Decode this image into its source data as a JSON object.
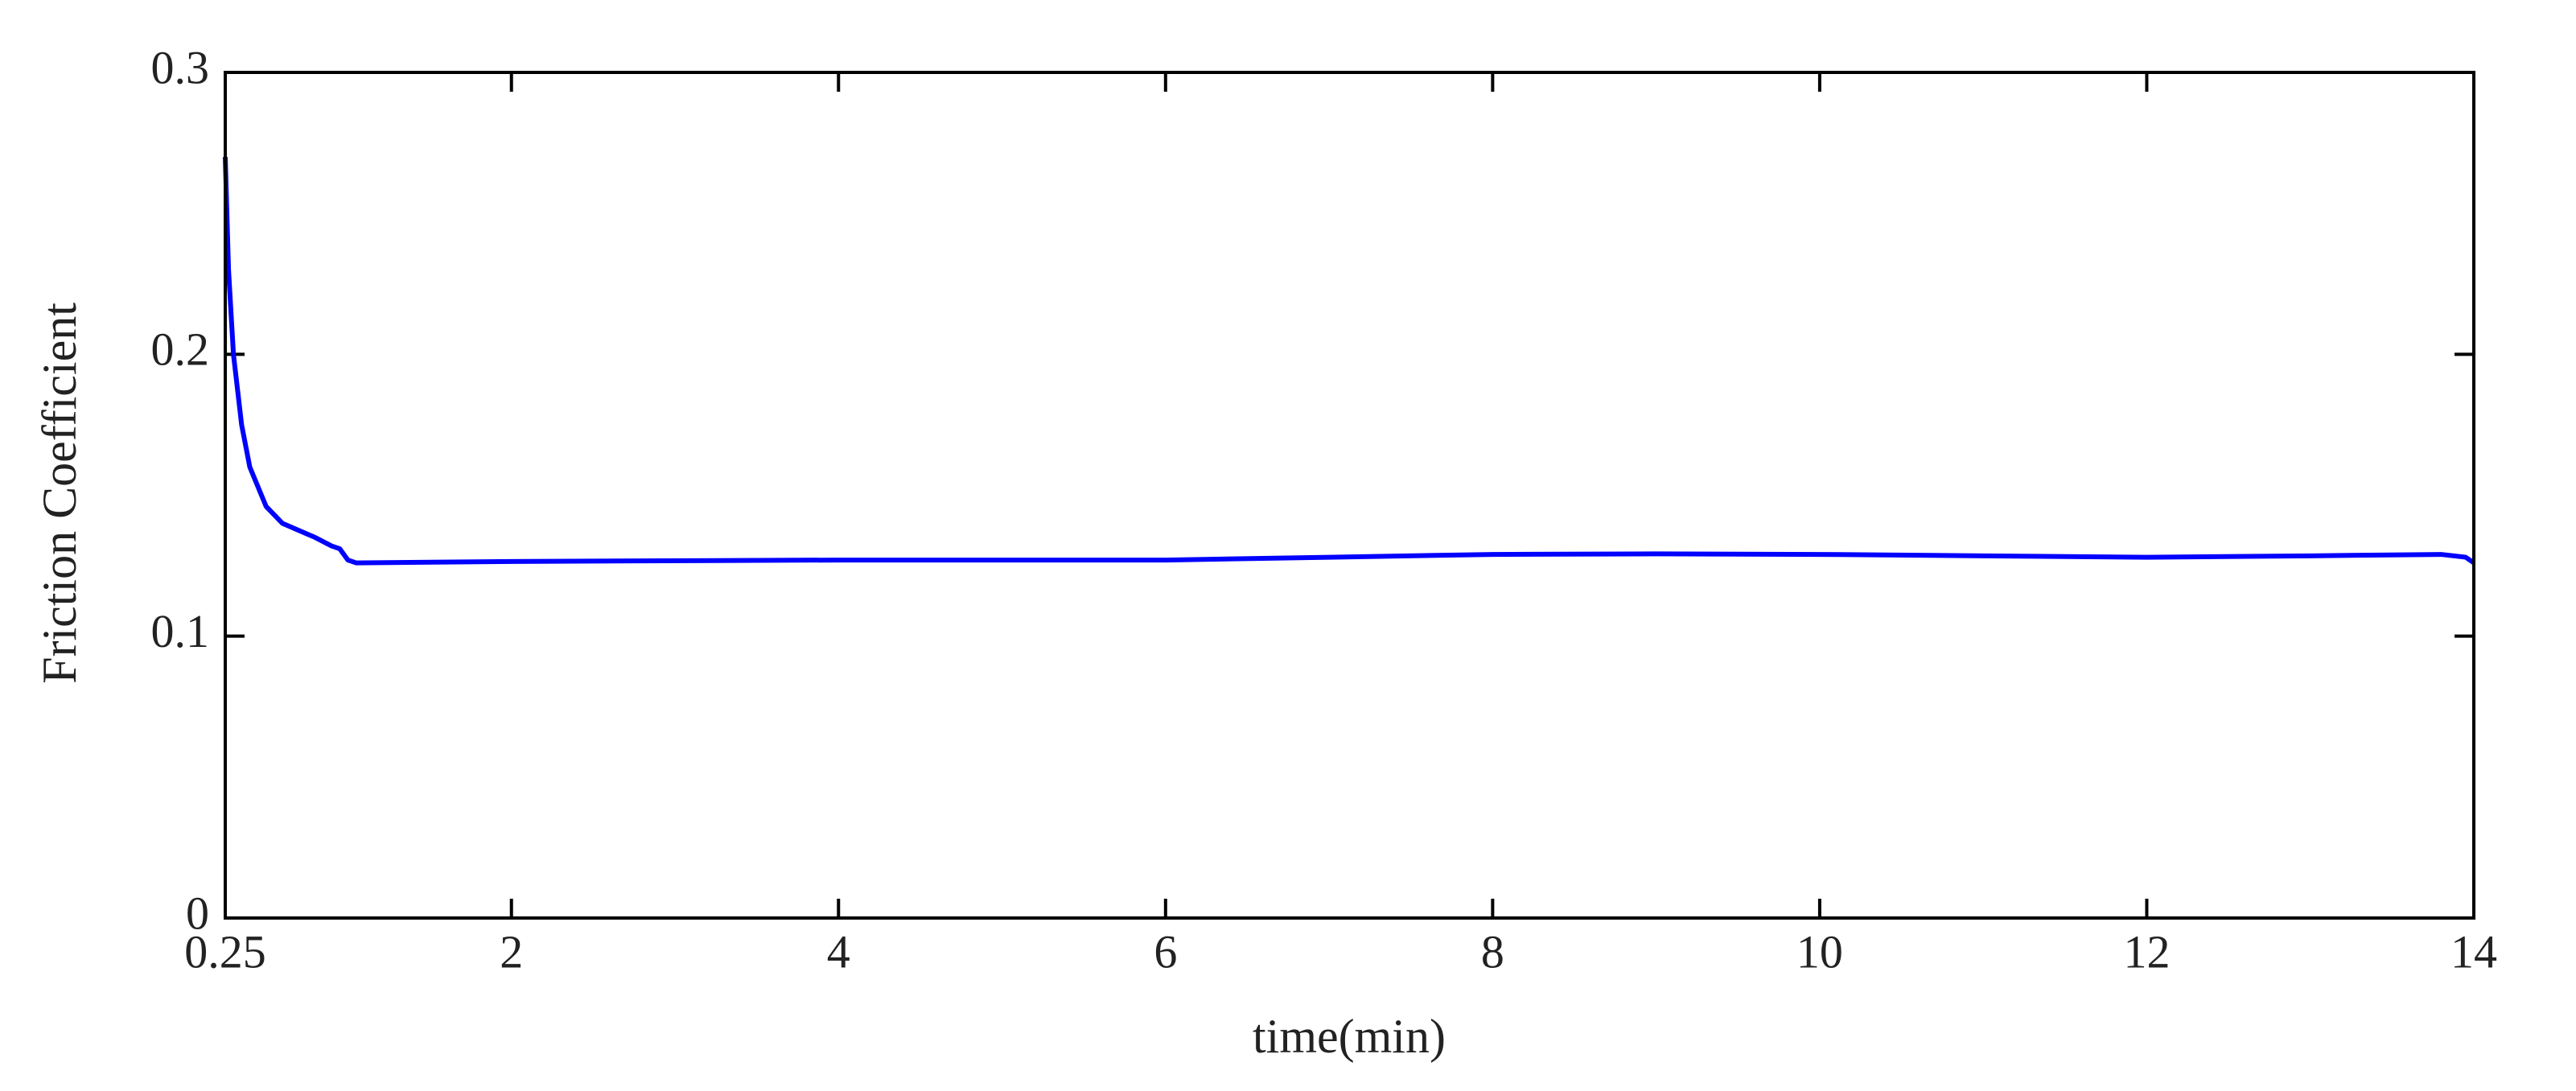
{
  "chart_data": {
    "type": "line",
    "xlabel": "time(min)",
    "ylabel": "Friction Coefficient",
    "x": [
      0.25,
      0.27,
      0.3,
      0.35,
      0.4,
      0.5,
      0.6,
      0.8,
      0.9,
      0.95,
      1.0,
      1.05,
      2,
      4,
      6,
      7,
      8,
      9,
      10,
      11,
      12,
      13,
      13.8,
      13.95,
      14
    ],
    "series": [
      {
        "color": "#0000ff",
        "values": [
          0.27,
          0.23,
          0.2,
          0.175,
          0.16,
          0.146,
          0.14,
          0.135,
          0.132,
          0.131,
          0.127,
          0.126,
          0.1265,
          0.127,
          0.127,
          0.128,
          0.129,
          0.1292,
          0.129,
          0.1285,
          0.128,
          0.1285,
          0.129,
          0.128,
          0.126
        ]
      }
    ],
    "xlim": [
      0.25,
      14
    ],
    "xticks": [
      0.25,
      2,
      4,
      6,
      8,
      10,
      12,
      14
    ],
    "ylim": [
      0,
      0.3
    ],
    "yticks": [
      0,
      0.1,
      0.2,
      0.3
    ]
  }
}
